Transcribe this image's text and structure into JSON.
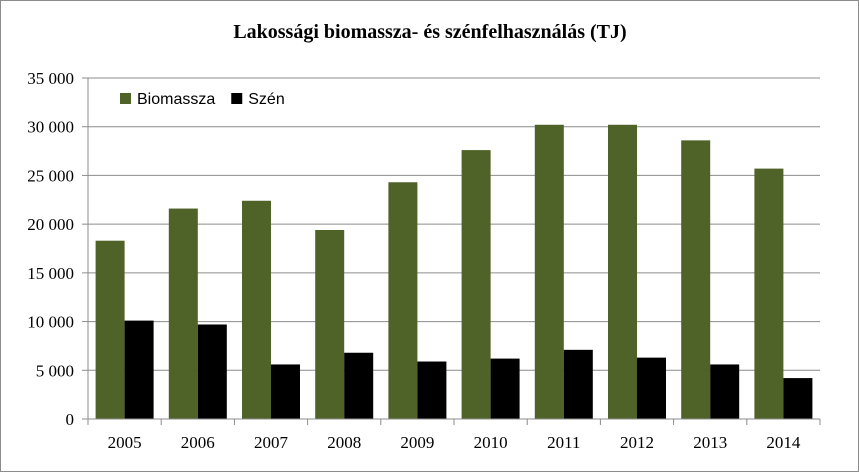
{
  "chart_data": {
    "type": "bar",
    "title": "Lakossági biomassza- és szénfelhasználás (TJ)",
    "categories": [
      "2005",
      "2006",
      "2007",
      "2008",
      "2009",
      "2010",
      "2011",
      "2012",
      "2013",
      "2014"
    ],
    "series": [
      {
        "name": "Biomassza",
        "color": "#4f6228",
        "values": [
          18300,
          21600,
          22400,
          19400,
          24300,
          27600,
          30200,
          30200,
          28600,
          25700
        ]
      },
      {
        "name": "Szén",
        "color": "#000000",
        "values": [
          10100,
          9700,
          5600,
          6800,
          5900,
          6200,
          7100,
          6300,
          5600,
          4200
        ]
      }
    ],
    "ylim": [
      0,
      35000
    ],
    "y_ticks": [
      0,
      5000,
      10000,
      15000,
      20000,
      25000,
      30000,
      35000
    ],
    "y_tick_labels": [
      "0",
      "5 000",
      "10 000",
      "15 000",
      "20 000",
      "25 000",
      "30 000",
      "35 000"
    ],
    "grid": true,
    "legend_position": "top-left"
  }
}
